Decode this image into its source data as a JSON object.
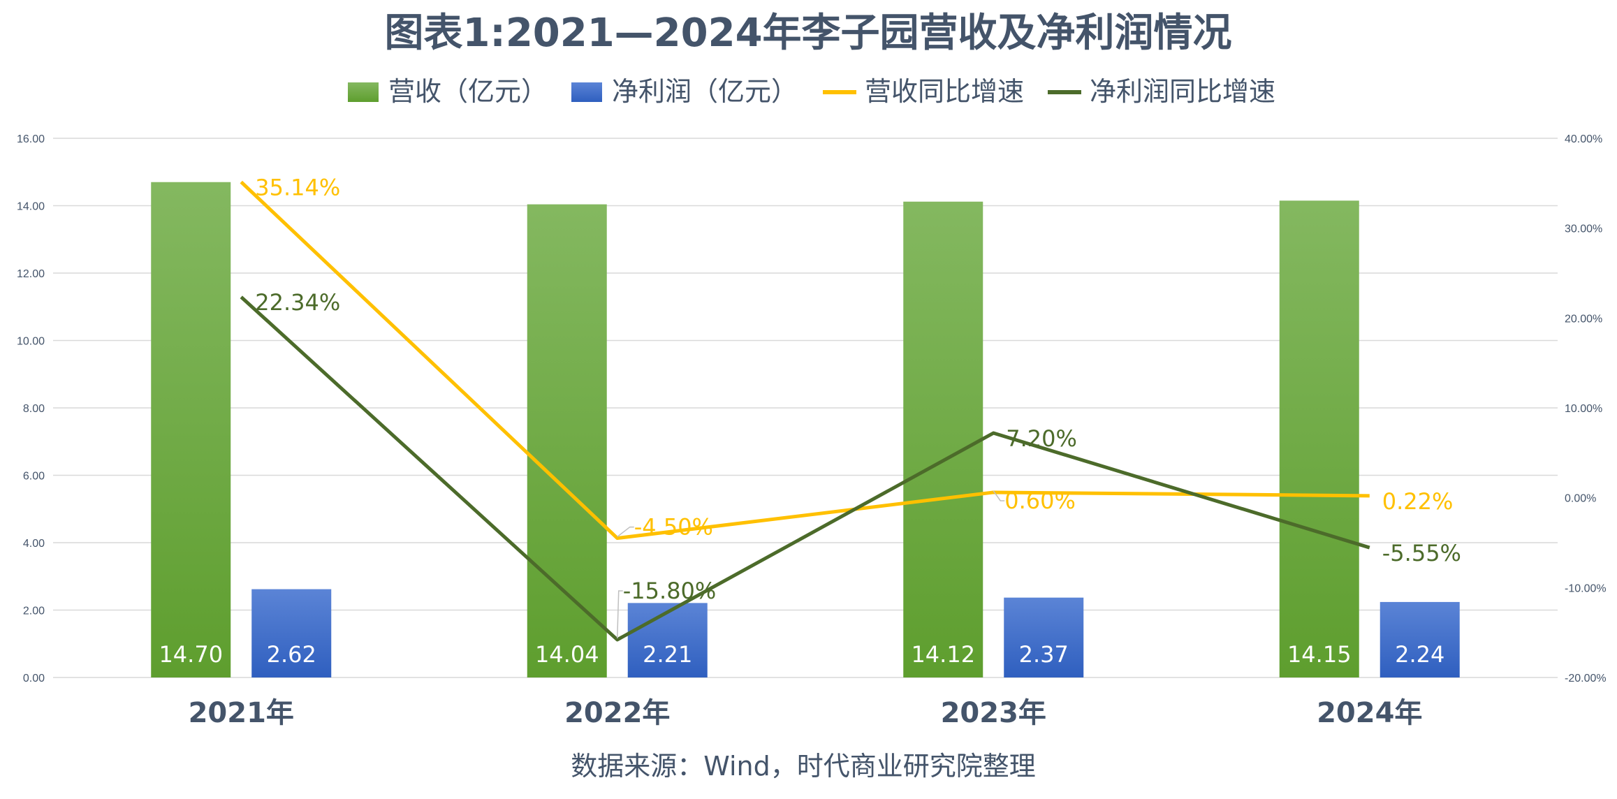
{
  "chart_data": {
    "type": "bar",
    "title": "图表1:2021—2024年李子园营收及净利润情况",
    "categories": [
      "2021年",
      "2022年",
      "2023年",
      "2024年"
    ],
    "bar_series": [
      {
        "name": "营收（亿元）",
        "values": [
          14.7,
          14.04,
          14.12,
          14.15
        ],
        "labels": [
          "14.70",
          "14.04",
          "14.12",
          "14.15"
        ],
        "color_top": "#84B860",
        "color_bottom": "#5E9E2E"
      },
      {
        "name": "净利润（亿元）",
        "values": [
          2.62,
          2.21,
          2.37,
          2.24
        ],
        "labels": [
          "2.62",
          "2.21",
          "2.37",
          "2.24"
        ],
        "color_top": "#5B84D6",
        "color_bottom": "#2F5FBF"
      }
    ],
    "line_series": [
      {
        "name": "营收同比增速",
        "values": [
          35.14,
          -4.5,
          0.6,
          0.22
        ],
        "labels": [
          "35.14%",
          "-4.50%",
          "0.60%",
          "0.22%"
        ],
        "color": "#FFC000"
      },
      {
        "name": "净利润同比增速",
        "values": [
          22.34,
          -15.8,
          7.2,
          -5.55
        ],
        "labels": [
          "22.34%",
          "-15.80%",
          "7.20%",
          "-5.55%"
        ],
        "color": "#4C6B2A"
      }
    ],
    "y_left": {
      "min": 0,
      "max": 16,
      "step": 2,
      "ticks": [
        "0.00",
        "2.00",
        "4.00",
        "6.00",
        "8.00",
        "10.00",
        "12.00",
        "14.00",
        "16.00"
      ]
    },
    "y_right": {
      "min": -20,
      "max": 40,
      "step": 10,
      "ticks": [
        "-20.00%",
        "-10.00%",
        "0.00%",
        "10.00%",
        "20.00%",
        "30.00%",
        "40.00%"
      ]
    },
    "grid": true,
    "legend_position": "top",
    "source": "数据来源：Wind，时代商业研究院整理"
  }
}
